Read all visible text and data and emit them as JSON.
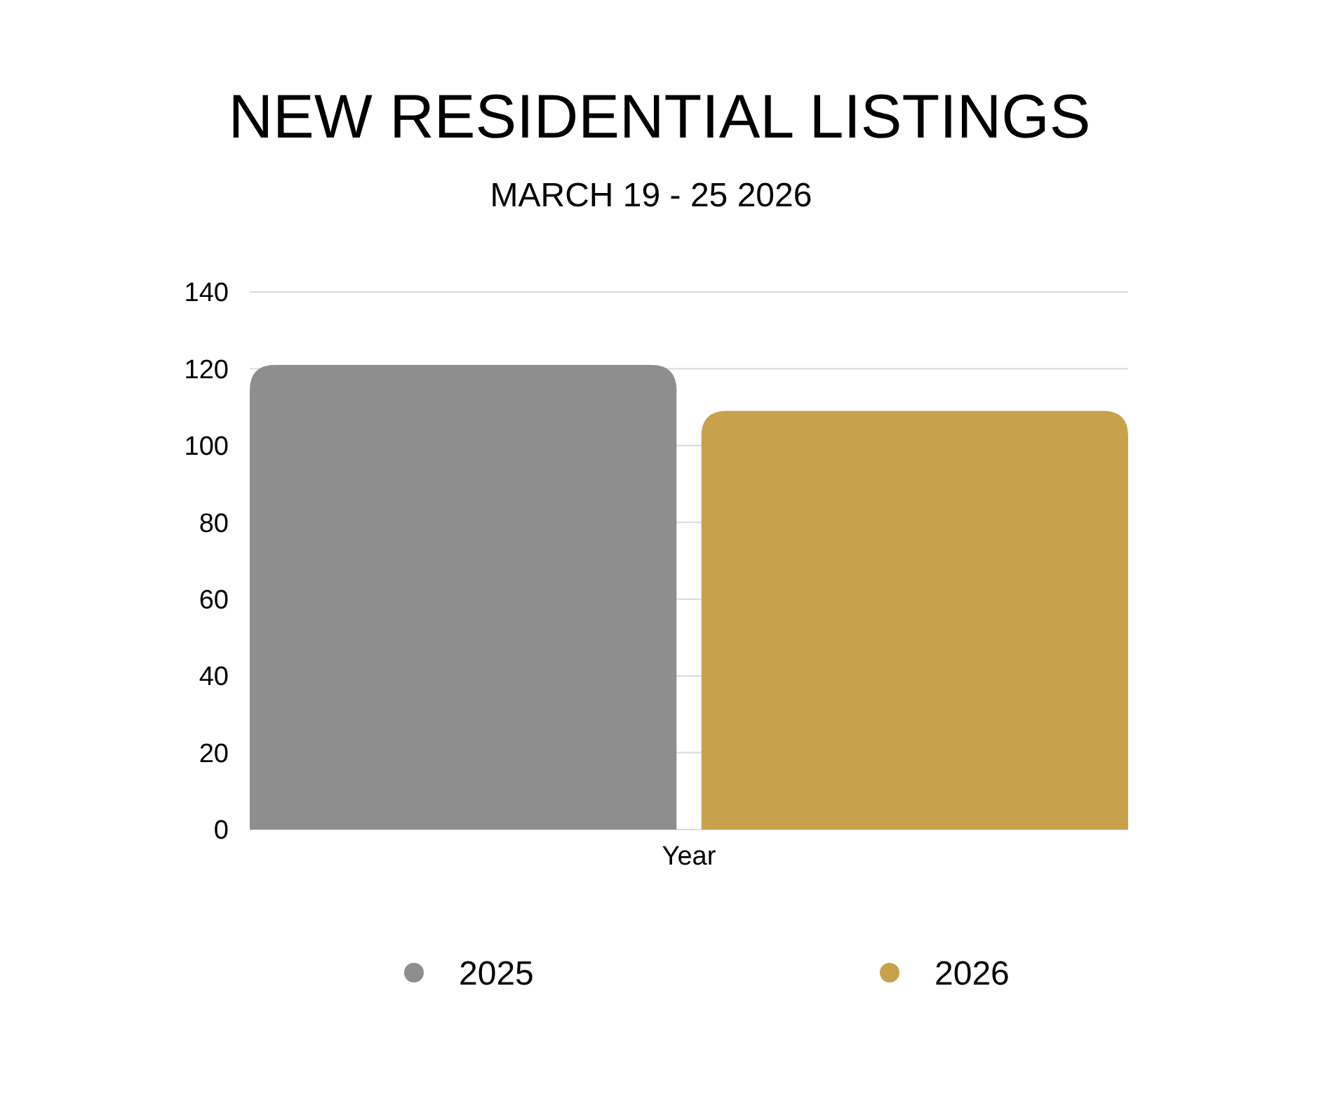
{
  "chart_data": {
    "type": "bar",
    "title": "NEW RESIDENTIAL LISTINGS",
    "subtitle": "MARCH 19 - 25 2026",
    "categories": [
      "Year"
    ],
    "series": [
      {
        "name": "2025",
        "color": "#8e8e8e",
        "values": [
          121
        ]
      },
      {
        "name": "2026",
        "color": "#c8a14d",
        "values": [
          109
        ]
      }
    ],
    "ylim": [
      0,
      140
    ],
    "yticks": [
      0,
      20,
      40,
      60,
      80,
      100,
      120,
      140
    ],
    "grid": "y",
    "legend": "bottom"
  }
}
